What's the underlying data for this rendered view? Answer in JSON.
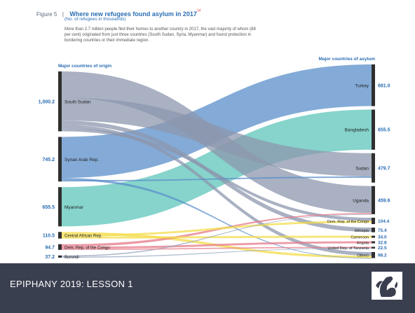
{
  "figure": {
    "label": "Figure 5",
    "title": "Where new refugees found asylum in 2017",
    "title_note": "34",
    "subtitle": "(No. of refugees in thousands)",
    "description": "More than 2.7 million people fled their homes to another country in 2017, the vast majority of whom (88 per cent) originated from just three countries (South Sudan, Syria, Myanmar) and found protection in bordering countries or their immediate region."
  },
  "footer": {
    "title": "EPIPHANY 2019: LESSON 1",
    "logo_icon": "angel-logo-icon"
  },
  "chart_data": {
    "type": "sankey",
    "unit": "thousands",
    "origins_header": "Major countries of origin",
    "destinations_header": "Major countries of asylum",
    "origins": [
      {
        "name": "South Sudan",
        "value": "1,000.2"
      },
      {
        "name": "Syrian Arab Rep.",
        "value": "745.2"
      },
      {
        "name": "Myanmar",
        "value": "655.5"
      },
      {
        "name": "Central African Rep.",
        "value": "110.5"
      },
      {
        "name": "Dem. Rep. of the Congo",
        "value": "94.7"
      },
      {
        "name": "Burundi",
        "value": "37.2"
      }
    ],
    "destinations": [
      {
        "name": "Turkey",
        "value": "681.0"
      },
      {
        "name": "Bangladesh",
        "value": "655.5"
      },
      {
        "name": "Sudan",
        "value": "479.7"
      },
      {
        "name": "Uganda",
        "value": "459.6"
      },
      {
        "name": "Dem. Rep. of the Congo",
        "value": "104.4"
      },
      {
        "name": "Ethiopia",
        "value": "75.4"
      },
      {
        "name": "Cameroon",
        "value": "34.0"
      },
      {
        "name": "Angola",
        "value": "32.8"
      },
      {
        "name": "United Rep. of Tanzania",
        "value": "22.5"
      },
      {
        "name": "Others",
        "value": "98.2"
      }
    ],
    "colors": {
      "South Sudan": "#8c97ae",
      "Syrian Arab Rep.": "#5b8fc9",
      "Myanmar": "#5ec6bb",
      "Central African Rep.": "#f3dc4a",
      "Dem. Rep. of the Congo": "#e57a8a",
      "Burundi": "#9aa8c0",
      "node": "#2f2f2f",
      "origin_value": "#2a6db3",
      "destination_value": "#2a6db3"
    }
  }
}
